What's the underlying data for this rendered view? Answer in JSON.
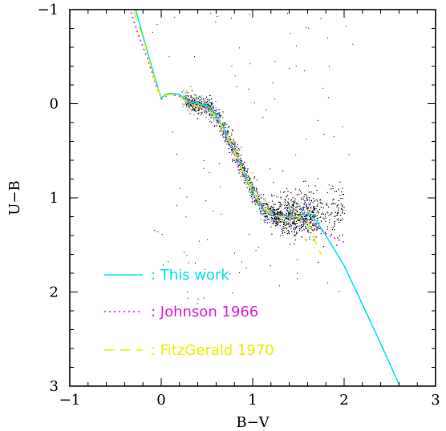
{
  "chart_data": {
    "type": "scatter",
    "xlabel": "B−V",
    "ylabel": "U−B",
    "xlim": [
      -1,
      3
    ],
    "ylim": [
      3,
      -1
    ],
    "y_inverted": true,
    "grid": false,
    "legend_position": "bottom-left",
    "x_ticks": [
      {
        "value": -1,
        "label": "−1"
      },
      {
        "value": 0,
        "label": "0"
      },
      {
        "value": 1,
        "label": "1"
      },
      {
        "value": 2,
        "label": "2"
      },
      {
        "value": 3,
        "label": "3"
      }
    ],
    "y_ticks": [
      {
        "value": -1,
        "label": "−1"
      },
      {
        "value": 0,
        "label": "0"
      },
      {
        "value": 1,
        "label": "1"
      },
      {
        "value": 2,
        "label": "2"
      },
      {
        "value": 3,
        "label": "3"
      }
    ],
    "series": [
      {
        "name": ": This work",
        "style": "solid",
        "color": "#00e5ee",
        "x": [
          -0.28,
          -0.2,
          -0.1,
          -0.03,
          0.0,
          0.05,
          0.1,
          0.2,
          0.3,
          0.4,
          0.5,
          0.6,
          0.7,
          0.8,
          0.9,
          1.0,
          1.1,
          1.2,
          1.3,
          1.4,
          1.5,
          1.55,
          1.6,
          1.7,
          1.8,
          1.9,
          2.0,
          2.2,
          2.4,
          2.6
        ],
        "y": [
          -1.0,
          -0.72,
          -0.38,
          -0.15,
          -0.06,
          -0.1,
          -0.11,
          -0.1,
          -0.02,
          0.0,
          0.02,
          0.12,
          0.3,
          0.5,
          0.72,
          0.93,
          1.1,
          1.18,
          1.2,
          1.2,
          1.2,
          1.18,
          1.17,
          1.25,
          1.4,
          1.56,
          1.72,
          2.13,
          2.55,
          2.98
        ]
      },
      {
        "name": ": Johnson 1966",
        "style": "dotted",
        "color": "#e020e0",
        "x": [
          -0.33,
          -0.25,
          -0.15,
          -0.05,
          0.0,
          0.05,
          0.1,
          0.2,
          0.3,
          0.4,
          0.5,
          0.6,
          0.7,
          0.8,
          0.9,
          1.0,
          1.1,
          1.2,
          1.3,
          1.4,
          1.5,
          1.6,
          1.7,
          1.8,
          1.9,
          2.0
        ],
        "y": [
          -0.97,
          -0.73,
          -0.48,
          -0.18,
          -0.05,
          -0.08,
          -0.1,
          -0.08,
          -0.02,
          0.03,
          0.05,
          0.15,
          0.32,
          0.52,
          0.75,
          0.95,
          1.1,
          1.18,
          1.2,
          1.2,
          1.2,
          1.23,
          1.3,
          1.38,
          1.43,
          1.47
        ]
      },
      {
        "name": ": FitzGerald 1970",
        "style": "dashed",
        "color": "#eeee00",
        "x": [
          -0.3,
          -0.2,
          -0.1,
          -0.03,
          0.0,
          0.05,
          0.1,
          0.2,
          0.3,
          0.4,
          0.5,
          0.6,
          0.7,
          0.8,
          0.9,
          1.0,
          1.1,
          1.2,
          1.3,
          1.4,
          1.5,
          1.6,
          1.65,
          1.7,
          1.75
        ],
        "y": [
          -0.98,
          -0.7,
          -0.35,
          -0.14,
          -0.05,
          -0.09,
          -0.1,
          -0.07,
          -0.01,
          0.03,
          0.05,
          0.14,
          0.31,
          0.51,
          0.73,
          0.94,
          1.09,
          1.17,
          1.2,
          1.2,
          1.2,
          1.24,
          1.35,
          1.5,
          1.6
        ]
      }
    ],
    "scatter_cloud": {
      "color": "#000000",
      "description_source": "stellar photometry points around the curves"
    }
  }
}
